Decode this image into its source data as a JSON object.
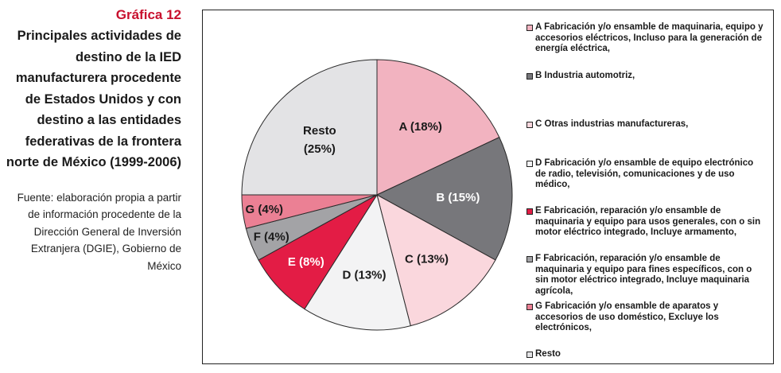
{
  "figure": {
    "number": "Gráfica 12",
    "title": "Principales actividades de destino de la IED manufacturera procedente de Estados Unidos y con destino a las entidades federativas de la frontera norte de México (1999-2006)",
    "source": "Fuente: elaboración propia a partir de información procedente de la Dirección General de Inversión Extranjera (DGIE), Gobierno de México"
  },
  "chart_data": {
    "type": "pie",
    "unit": "%",
    "slices": [
      {
        "key": "A",
        "value": 18,
        "label": "A (18%)",
        "color": "#f2b3c0",
        "label_color": "#1a1a1a"
      },
      {
        "key": "B",
        "value": 15,
        "label": "B (15%)",
        "color": "#77777b",
        "label_color": "#ffffff"
      },
      {
        "key": "C",
        "value": 13,
        "label": "C (13%)",
        "color": "#fad7dd",
        "label_color": "#1a1a1a"
      },
      {
        "key": "D",
        "value": 13,
        "label": "D (13%)",
        "color": "#f3f3f4",
        "label_color": "#1a1a1a"
      },
      {
        "key": "E",
        "value": 8,
        "label": "E (8%)",
        "color": "#e31c45",
        "label_color": "#ffffff"
      },
      {
        "key": "F",
        "value": 4,
        "label": "F (4%)",
        "color": "#a3a3a6",
        "label_color": "#1a1a1a"
      },
      {
        "key": "G",
        "value": 4,
        "label": "G (4%)",
        "color": "#eb8094",
        "label_color": "#1a1a1a"
      },
      {
        "key": "Resto",
        "value": 25,
        "label": "Resto (25%)",
        "color": "#e3e3e5",
        "label_color": "#1a1a1a"
      }
    ],
    "legend": [
      {
        "key": "A",
        "text": "A Fabricación y/o ensamble de maquinaria, equipo y accesorios eléctricos, Incluso para la generación de energía eléctrica,",
        "color": "#f2b3c0"
      },
      {
        "key": "B",
        "text": "B Industria automotriz,",
        "color": "#77777b"
      },
      {
        "key": "C",
        "text": "C Otras industrias manufactureras,",
        "color": "#fad7dd"
      },
      {
        "key": "D",
        "text": "D Fabricación y/o ensamble de equipo electrónico de radio, televisión, comunicaciones y de uso médico,",
        "color": "#f3f3f4"
      },
      {
        "key": "E",
        "text": "E Fabricación, reparación y/o ensamble de maquinaria y equipo para usos generales, con o sin motor eléctrico integrado, Incluye armamento,",
        "color": "#e31c45"
      },
      {
        "key": "F",
        "text": "F Fabricación, reparación y/o ensamble de maquinaria y equipo para fines específicos, con o sin motor eléctrico integrado, Incluye maquinaria agrícola,",
        "color": "#a3a3a6"
      },
      {
        "key": "G",
        "text": "G Fabricación y/o ensamble de aparatos y accesorios de uso doméstico, Excluye los electrónicos,",
        "color": "#eb8094"
      },
      {
        "key": "Resto",
        "text": "Resto",
        "color": "#e3e3e5"
      }
    ],
    "legend_placement": "right",
    "grid": false
  }
}
